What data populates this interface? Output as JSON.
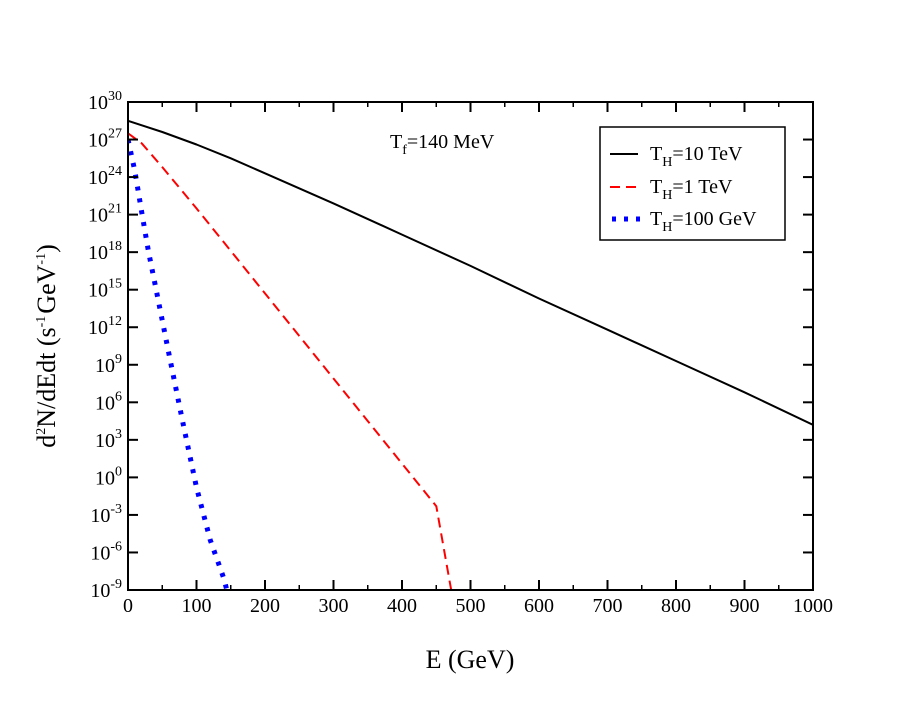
{
  "chart_data": {
    "type": "line",
    "title": "",
    "xlabel": "E (GeV)",
    "ylabel_parts": {
      "base": "d",
      "sup1": "2",
      "mid": "N/dEdt (s",
      "sup2": "-1",
      "mid2": "GeV",
      "sup3": "-1",
      "end": ")"
    },
    "xlim": [
      0,
      1000
    ],
    "ylim_log10": [
      -9,
      30
    ],
    "x_ticks": [
      0,
      100,
      200,
      300,
      400,
      500,
      600,
      700,
      800,
      900,
      1000
    ],
    "x_tick_labels": [
      "0",
      "100",
      "200",
      "300",
      "400",
      "500",
      "600",
      "700",
      "800",
      "900",
      "1000"
    ],
    "y_ticks_log10": [
      -9,
      -6,
      -3,
      0,
      3,
      6,
      9,
      12,
      15,
      18,
      21,
      24,
      27,
      30
    ],
    "y_tick_base": "10",
    "y_tick_exponents": [
      "-9",
      "-6",
      "-3",
      "0",
      "3",
      "6",
      "9",
      "12",
      "15",
      "18",
      "21",
      "24",
      "27",
      "30"
    ],
    "annotation": {
      "main": "T",
      "sub": "f",
      "rest": "=140 MeV"
    },
    "legend_position": "top-right",
    "series": [
      {
        "name": "T_H=10 TeV",
        "label_main": "T",
        "label_sub": "H",
        "label_rest": "=10 TeV",
        "style": "solid",
        "color": "#000000",
        "x": [
          0,
          50,
          100,
          150,
          200,
          300,
          400,
          500,
          600,
          700,
          800,
          900,
          1000
        ],
        "log10_y": [
          28.5,
          27.6,
          26.6,
          25.5,
          24.3,
          21.9,
          19.4,
          16.9,
          14.3,
          11.8,
          9.3,
          6.8,
          4.2
        ]
      },
      {
        "name": "T_H=1 TeV",
        "label_main": "T",
        "label_sub": "H",
        "label_rest": "=1 TeV",
        "style": "dashed",
        "color": "#ff0000",
        "x": [
          0,
          20,
          50,
          100,
          150,
          200,
          250,
          300,
          350,
          400,
          450,
          475
        ],
        "log10_y": [
          27.5,
          26.7,
          24.8,
          21.5,
          18.1,
          14.7,
          11.3,
          7.9,
          4.5,
          1.1,
          -2.3,
          -10.0
        ]
      },
      {
        "name": "T_H=100 GeV",
        "label_main": "T",
        "label_sub": "H",
        "label_rest": "=100 GeV",
        "style": "dotted",
        "color": "#0000ff",
        "x": [
          0,
          10,
          20,
          30,
          40,
          60,
          80,
          100,
          120,
          140,
          148
        ],
        "log10_y": [
          27.0,
          24.5,
          21.2,
          18.0,
          15.3,
          9.8,
          4.4,
          -0.8,
          -5.0,
          -8.1,
          -9.8
        ]
      }
    ]
  }
}
